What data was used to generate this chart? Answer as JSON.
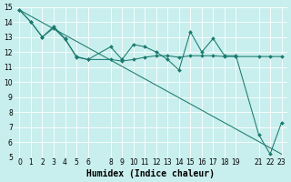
{
  "bg_color": "#c8eeed",
  "line_color": "#1a7a6e",
  "grid_color": "#aadddd",
  "xlabel": "Humidex (Indice chaleur)",
  "xlim": [
    -0.5,
    23.5
  ],
  "ylim": [
    5,
    15
  ],
  "xticks": [
    0,
    1,
    2,
    3,
    4,
    5,
    6,
    8,
    9,
    10,
    11,
    12,
    13,
    14,
    15,
    16,
    17,
    18,
    19,
    21,
    22,
    23
  ],
  "yticks": [
    5,
    6,
    7,
    8,
    9,
    10,
    11,
    12,
    13,
    14,
    15
  ],
  "line1_x": [
    0,
    1,
    2,
    3,
    4,
    5,
    6,
    8,
    9,
    10,
    11,
    12,
    13,
    14,
    15,
    16,
    17,
    18,
    19,
    21,
    22,
    23
  ],
  "line1_y": [
    14.8,
    14.0,
    13.0,
    13.7,
    12.9,
    11.65,
    11.5,
    12.35,
    11.5,
    12.5,
    12.35,
    12.0,
    11.5,
    10.8,
    13.35,
    12.0,
    12.9,
    11.75,
    11.75,
    6.5,
    5.2,
    7.3
  ],
  "line2_x": [
    0,
    1,
    2,
    3,
    4,
    5,
    6,
    8,
    9,
    10,
    11,
    12,
    13,
    14,
    15,
    16,
    17,
    18,
    19,
    21,
    22,
    23
  ],
  "line2_y": [
    14.8,
    14.0,
    13.0,
    13.6,
    12.85,
    11.7,
    11.5,
    11.5,
    11.4,
    11.5,
    11.65,
    11.75,
    11.75,
    11.65,
    11.75,
    11.75,
    11.75,
    11.7,
    11.7,
    11.7,
    11.7,
    11.7
  ],
  "line3_x": [
    0,
    23
  ],
  "line3_y": [
    14.8,
    5.2
  ],
  "font_size_label": 7,
  "font_size_tick": 5.5,
  "marker_size": 2.0,
  "line_width": 0.75
}
